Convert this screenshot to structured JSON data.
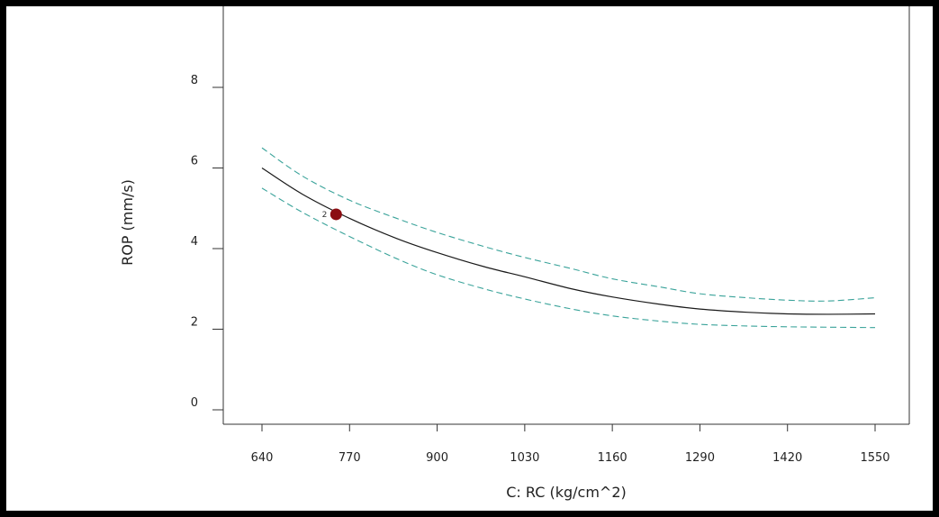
{
  "chart_data": {
    "type": "line",
    "xlabel": "C: RC (kg/cm^2)",
    "ylabel": "ROP (mm/s)",
    "xticks": [
      640,
      770,
      900,
      1030,
      1160,
      1290,
      1420,
      1550
    ],
    "yticks": [
      0,
      2,
      4,
      6,
      8
    ],
    "xlim": [
      640,
      1550
    ],
    "ylim": [
      0,
      10
    ],
    "grid": false,
    "colors": {
      "fit": "#1a1a1a",
      "band": "#3aa39a",
      "point": "#8b0d12"
    },
    "series": [
      {
        "role": "fit",
        "x": [
          640,
          700,
          770,
          840,
          900,
          970,
          1030,
          1100,
          1160,
          1230,
          1290,
          1360,
          1420,
          1480,
          1550
        ],
        "y": [
          6.0,
          5.35,
          4.75,
          4.25,
          3.9,
          3.55,
          3.3,
          3.0,
          2.8,
          2.62,
          2.5,
          2.42,
          2.38,
          2.37,
          2.38
        ]
      },
      {
        "role": "upper-band",
        "x": [
          640,
          700,
          770,
          840,
          900,
          970,
          1030,
          1100,
          1160,
          1230,
          1290,
          1360,
          1420,
          1480,
          1550
        ],
        "y": [
          6.5,
          5.8,
          5.2,
          4.75,
          4.4,
          4.05,
          3.78,
          3.5,
          3.25,
          3.05,
          2.88,
          2.78,
          2.72,
          2.7,
          2.78
        ]
      },
      {
        "role": "lower-band",
        "x": [
          640,
          700,
          770,
          840,
          900,
          970,
          1030,
          1100,
          1160,
          1230,
          1290,
          1360,
          1420,
          1480,
          1550
        ],
        "y": [
          5.5,
          4.9,
          4.3,
          3.75,
          3.35,
          3.0,
          2.75,
          2.5,
          2.33,
          2.2,
          2.12,
          2.08,
          2.06,
          2.05,
          2.04
        ]
      }
    ],
    "points": [
      {
        "x": 750,
        "y": 4.85,
        "label": "2"
      }
    ]
  }
}
